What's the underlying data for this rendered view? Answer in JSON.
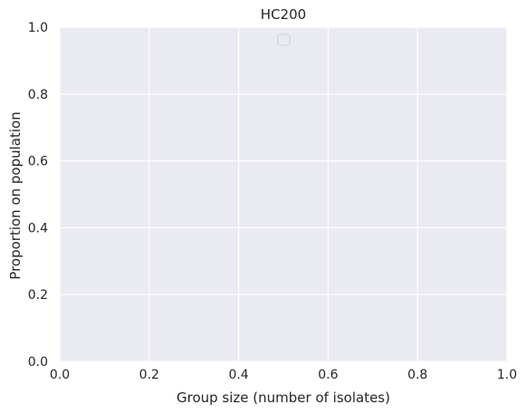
{
  "chart_data": {
    "type": "line",
    "title": "HC200",
    "xlabel": "Group size (number of isolates)",
    "ylabel": "Proportion on population",
    "xlim": [
      0,
      1
    ],
    "ylim": [
      0,
      1
    ],
    "x_ticks": [
      "0.0",
      "0.2",
      "0.4",
      "0.6",
      "0.8",
      "1.0"
    ],
    "y_ticks": [
      "0.0",
      "0.2",
      "0.4",
      "0.6",
      "0.8",
      "1.0"
    ],
    "series": [],
    "grid": true,
    "legend": "top-center (empty)",
    "colors": {
      "plot_background": "#eaeaf2",
      "grid": "#ffffff",
      "text": "#262626"
    }
  }
}
